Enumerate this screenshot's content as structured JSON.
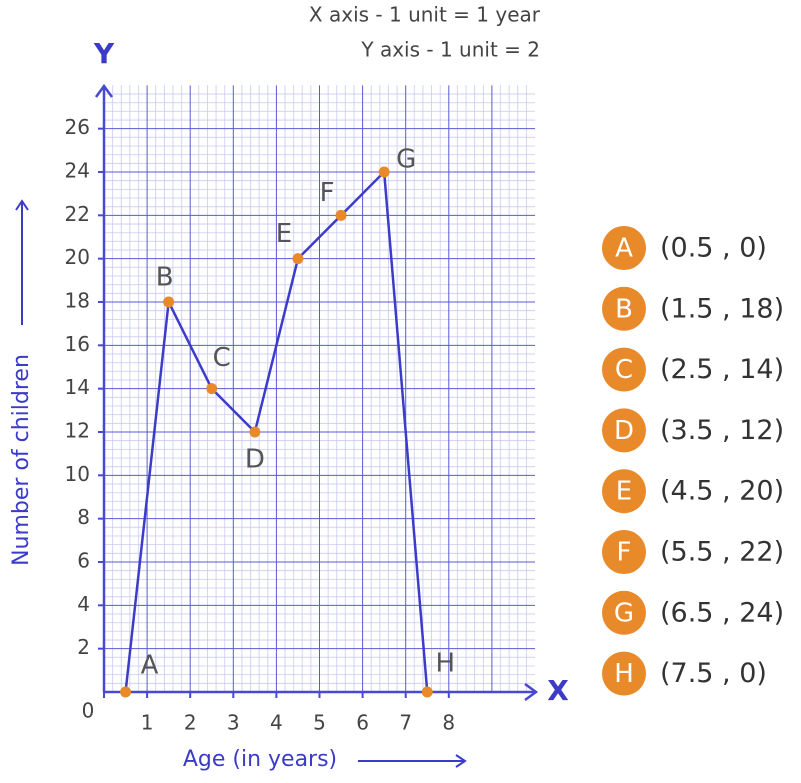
{
  "chart_data": {
    "type": "line",
    "notes": [
      "X axis - 1 unit = 1 year",
      "Y axis - 1 unit = 2"
    ],
    "x_axis_letter": "X",
    "y_axis_letter": "Y",
    "x_label": "Age (in years)",
    "y_label": "Number of children",
    "x": [
      0.5,
      1.5,
      2.5,
      3.5,
      4.5,
      5.5,
      6.5,
      7.5
    ],
    "series": [
      {
        "values": [
          0,
          18,
          14,
          12,
          20,
          22,
          24,
          0
        ],
        "color": "#3c3cc8",
        "marker_color": "#e8892a"
      }
    ],
    "point_names": [
      "A",
      "B",
      "C",
      "D",
      "E",
      "F",
      "G",
      "H"
    ],
    "coordinate_labels": [
      "(0.5 , 0)",
      "(1.5 , 18)",
      "(2.5 , 14)",
      "(3.5 , 12)",
      "(4.5 , 20)",
      "(5.5 , 22)",
      "(6.5 , 24)",
      "(7.5 , 0)"
    ],
    "xlim": [
      0,
      10
    ],
    "ylim": [
      0,
      28
    ],
    "xticks": [
      0,
      1,
      2,
      3,
      4,
      5,
      6,
      7,
      8
    ],
    "yticks": [
      2,
      4,
      6,
      8,
      10,
      12,
      14,
      16,
      18,
      20,
      22,
      24,
      26
    ],
    "grid": true
  }
}
